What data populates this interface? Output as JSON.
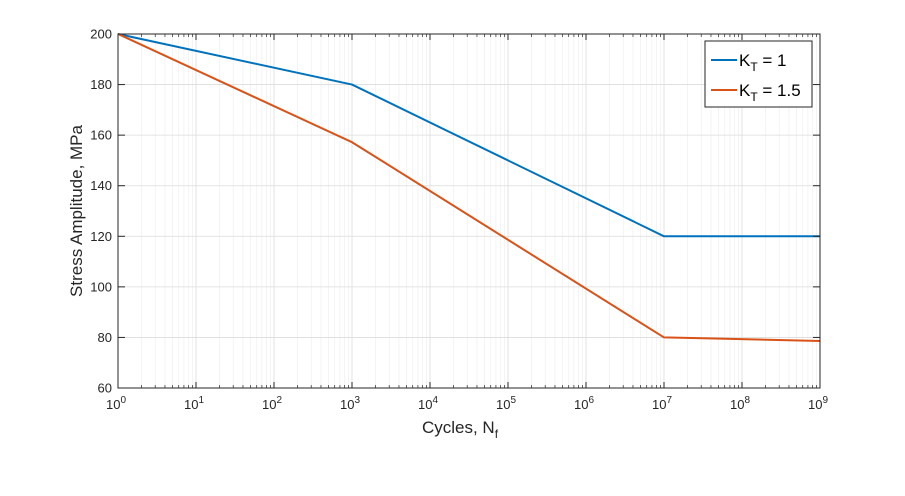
{
  "chart_data": {
    "type": "line",
    "title": "",
    "xlabel": "Cycles, N",
    "xlabel_subscript": "f",
    "ylabel": "Stress Amplitude, MPa",
    "xscale": "log",
    "xlim": [
      1,
      1000000000
    ],
    "ylim": [
      60,
      200
    ],
    "grid": true,
    "minor_grid": true,
    "legend_position": "top-right",
    "x_ticks": [
      {
        "base": "10",
        "exp": "0",
        "value": 1
      },
      {
        "base": "10",
        "exp": "1",
        "value": 10
      },
      {
        "base": "10",
        "exp": "2",
        "value": 100
      },
      {
        "base": "10",
        "exp": "3",
        "value": 1000
      },
      {
        "base": "10",
        "exp": "4",
        "value": 10000
      },
      {
        "base": "10",
        "exp": "5",
        "value": 100000
      },
      {
        "base": "10",
        "exp": "6",
        "value": 1000000
      },
      {
        "base": "10",
        "exp": "7",
        "value": 10000000
      },
      {
        "base": "10",
        "exp": "8",
        "value": 100000000
      },
      {
        "base": "10",
        "exp": "9",
        "value": 1000000000
      }
    ],
    "y_ticks": [
      "60",
      "80",
      "100",
      "120",
      "140",
      "160",
      "180",
      "200"
    ],
    "series": [
      {
        "name": "K_T = 1",
        "label_main": "K",
        "label_sub": "T",
        "label_rest": " = 1",
        "color": "#0072BD",
        "x": [
          1,
          1000,
          10000000,
          1000000000
        ],
        "y": [
          200,
          180,
          120,
          120
        ]
      },
      {
        "name": "K_T = 1.5",
        "label_main": "K",
        "label_sub": "T",
        "label_rest": " = 1.5",
        "color": "#D95319",
        "x": [
          1,
          1000,
          10000000,
          1000000000
        ],
        "y": [
          200,
          157.2,
          80,
          78.6
        ]
      }
    ]
  }
}
